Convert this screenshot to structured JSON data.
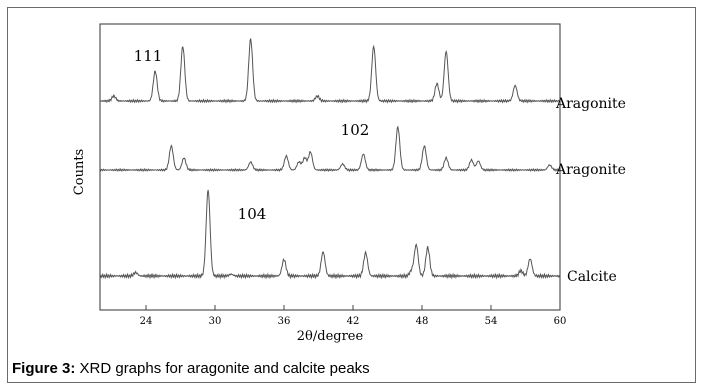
{
  "chart_data": {
    "type": "line",
    "xlabel": "2θ/degree",
    "ylabel": "Counts",
    "xlim": [
      20,
      60
    ],
    "xticks": [
      24,
      30,
      36,
      42,
      48,
      54,
      60
    ],
    "series": [
      {
        "name": "Aragonite",
        "peak_label": "111",
        "peaks": [
          [
            21.2,
            0.08
          ],
          [
            24.8,
            0.48
          ],
          [
            27.2,
            0.88
          ],
          [
            33.1,
            1.0
          ],
          [
            38.9,
            0.08
          ],
          [
            43.8,
            0.88
          ],
          [
            49.3,
            0.28
          ],
          [
            50.1,
            0.8
          ],
          [
            56.1,
            0.25
          ]
        ]
      },
      {
        "name": "Aragonite",
        "peak_label": "102",
        "peaks": [
          [
            26.2,
            0.48
          ],
          [
            27.3,
            0.24
          ],
          [
            33.1,
            0.16
          ],
          [
            36.2,
            0.28
          ],
          [
            37.3,
            0.16
          ],
          [
            37.8,
            0.24
          ],
          [
            38.3,
            0.36
          ],
          [
            41.1,
            0.12
          ],
          [
            42.9,
            0.32
          ],
          [
            45.9,
            0.86
          ],
          [
            48.2,
            0.48
          ],
          [
            50.1,
            0.24
          ],
          [
            52.3,
            0.2
          ],
          [
            52.9,
            0.18
          ],
          [
            59.1,
            0.1
          ]
        ]
      },
      {
        "name": "Calcite",
        "peak_label": "104",
        "peaks": [
          [
            23.1,
            0.04
          ],
          [
            29.4,
            1.0
          ],
          [
            31.4,
            0.02
          ],
          [
            36.0,
            0.19
          ],
          [
            39.4,
            0.28
          ],
          [
            43.1,
            0.27
          ],
          [
            47.1,
            0.06
          ],
          [
            47.5,
            0.36
          ],
          [
            48.5,
            0.33
          ],
          [
            56.6,
            0.06
          ],
          [
            57.4,
            0.2
          ]
        ]
      }
    ],
    "caption_bold": "Figure 3:",
    "caption_text": " XRD graphs for aragonite and calcite peaks"
  }
}
